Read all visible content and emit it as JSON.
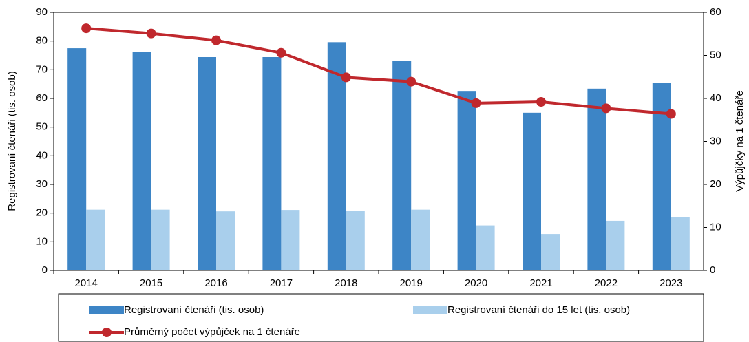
{
  "chart_data": {
    "type": "bar",
    "categories": [
      "2014",
      "2015",
      "2016",
      "2017",
      "2018",
      "2019",
      "2020",
      "2021",
      "2022",
      "2023"
    ],
    "y_label": "Registrovaní čtenáři (tis. osob)",
    "y2_label": "Výpůjčky na 1 čtenáře",
    "ylim": [
      0,
      90
    ],
    "yticks": [
      0,
      10,
      20,
      30,
      40,
      50,
      60,
      70,
      80,
      90
    ],
    "y2lim": [
      0,
      60
    ],
    "y2ticks": [
      0,
      10,
      20,
      30,
      40,
      50,
      60
    ],
    "grid": false,
    "series": [
      {
        "name": "Registrovaní čtenáři (tis. osob)",
        "type": "bar",
        "color": "#3d85c6",
        "values": [
          77.5,
          76.1,
          74.4,
          74.4,
          79.6,
          73.2,
          62.6,
          55.0,
          63.4,
          65.5
        ]
      },
      {
        "name": "Registrovaní čtenáři do 15 let (tis. osob)",
        "type": "bar",
        "color": "#a9cfec",
        "values": [
          21.2,
          21.2,
          20.6,
          21.1,
          20.8,
          21.2,
          15.7,
          12.7,
          17.3,
          18.6
        ]
      },
      {
        "name": "Průměrný počet výpůjček na 1 čtenáře",
        "type": "line",
        "color": "#c0282d",
        "axis": "y2",
        "values": [
          56.3,
          55.1,
          53.5,
          50.6,
          44.9,
          43.9,
          38.9,
          39.2,
          37.7,
          36.4
        ]
      }
    ]
  }
}
